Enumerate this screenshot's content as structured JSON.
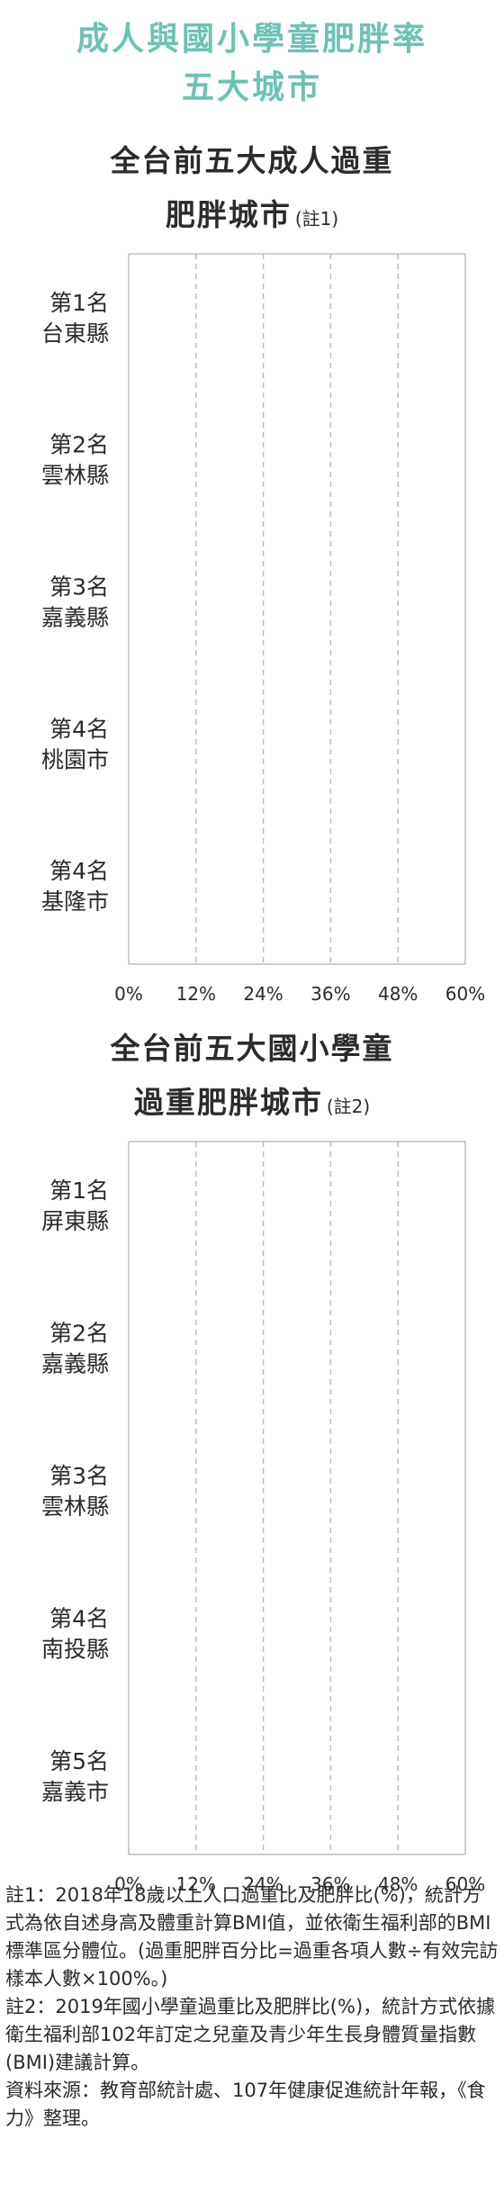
{
  "header": {
    "title_line1": "成人與國小學童肥胖率",
    "title_line2": "五大城市"
  },
  "accent_color": "#6cc2b5",
  "chart_data": [
    {
      "type": "bar",
      "title_line1": "全台前五大成人過重",
      "title_line2": "肥胖城市",
      "title_note": "(註1)",
      "categories": [
        {
          "rank": "第1名",
          "name": "台東縣"
        },
        {
          "rank": "第2名",
          "name": "雲林縣"
        },
        {
          "rank": "第3名",
          "name": "嘉義縣"
        },
        {
          "rank": "第4名",
          "name": "桃園市"
        },
        {
          "rank": "第4名",
          "name": "基隆市"
        }
      ],
      "x_ticks": [
        "0%",
        "12%",
        "24%",
        "36%",
        "48%",
        "60%"
      ],
      "xlim": [
        0,
        60
      ],
      "grid": true,
      "values": [
        null,
        null,
        null,
        null,
        null
      ]
    },
    {
      "type": "bar",
      "title_line1": "全台前五大國小學童",
      "title_line2": "過重肥胖城市",
      "title_note": "(註2)",
      "categories": [
        {
          "rank": "第1名",
          "name": "屏東縣"
        },
        {
          "rank": "第2名",
          "name": "嘉義縣"
        },
        {
          "rank": "第3名",
          "name": "雲林縣"
        },
        {
          "rank": "第4名",
          "name": "南投縣"
        },
        {
          "rank": "第5名",
          "name": "嘉義市"
        }
      ],
      "x_ticks": [
        "0%",
        "12%",
        "24%",
        "36%",
        "48%",
        "60%"
      ],
      "xlim": [
        0,
        60
      ],
      "grid": true,
      "values": [
        null,
        null,
        null,
        null,
        null
      ]
    }
  ],
  "footnotes": [
    "註1：2018年18歲以上人口過重比及肥胖比(%)，統計方式為依自述身高及體重計算BMI值，並依衛生福利部的BMI標準區分體位。(過重肥胖百分比=過重各項人數÷有效完訪樣本人數×100%。)",
    "註2：2019年國小學童過重比及肥胖比(%)，統計方式依據衛生福利部102年訂定之兒童及青少年生長身體質量指數(BMI)建議計算。",
    "資料來源：教育部統計處、107年健康促進統計年報，《食力》整理。"
  ]
}
